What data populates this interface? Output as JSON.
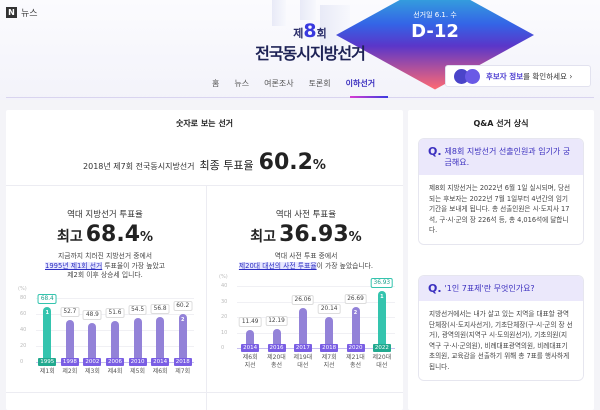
{
  "header": {
    "logo_letter": "N",
    "logo_text": "뉴스",
    "title_prefix": "제",
    "title_num": "8",
    "title_suffix": "회",
    "title_main": "전국동시지방선거",
    "election_day_label": "선거일 6.1. 수",
    "dday": "D-12",
    "candidate_btn": {
      "highlight": "후보자 정보",
      "rest": "를 확인하세요",
      "chevron": "›"
    }
  },
  "nav": {
    "items": [
      {
        "label": "홈"
      },
      {
        "label": "뉴스"
      },
      {
        "label": "여론조사"
      },
      {
        "label": "토론회"
      },
      {
        "label": "이하선거",
        "active": true
      }
    ]
  },
  "numbers_section": {
    "title": "숫자로 보는 선거",
    "final_prefix": "2018년 제7회 전국동시지방선거",
    "final_label": "최종 투표율",
    "final_value": "60.2",
    "final_unit": "%"
  },
  "card_local": {
    "subtitle": "역대 지방선거 투표율",
    "big_label": "최고",
    "big_value": "68.4",
    "unit": "%",
    "desc_line1": "지금까지 치러진 지방선거 중에서",
    "desc_link": "1995년 제1회 선거",
    "desc_line2_rest": " 투표율이 가장 높았고",
    "desc_line3": "제2회 이후 상승세 입니다."
  },
  "card_early": {
    "subtitle": "역대 사전 투표율",
    "big_label": "최고",
    "big_value": "36.93",
    "unit": "%",
    "desc_line1": "역대 사전 투표 중에서",
    "desc_link": "제20대 대선의 사전 투표율",
    "desc_line2_rest": "이 가장 높았습니다."
  },
  "chart_data": [
    {
      "type": "bar",
      "title": "역대 지방선거 투표율",
      "ylabel": "(%)",
      "ylim": [
        0,
        80
      ],
      "yticks": [
        0,
        20,
        40,
        60,
        80
      ],
      "categories": [
        "제1회",
        "제2회",
        "제3회",
        "제4회",
        "제5회",
        "제6회",
        "제7회"
      ],
      "years": [
        "1995",
        "1998",
        "2002",
        "2006",
        "2010",
        "2014",
        "2018"
      ],
      "values": [
        68.4,
        52.7,
        48.9,
        51.6,
        54.5,
        56.8,
        60.2
      ],
      "value_labels": [
        "68.4",
        "52.7",
        "48.9",
        "51.6",
        "54.5",
        "56.8",
        "60.2"
      ],
      "ranks": {
        "0": "1",
        "6": "2"
      },
      "highlight_index": 0,
      "colors": {
        "bar": "#9382d8",
        "highlight": "#34c4ae"
      },
      "grid": true
    },
    {
      "type": "bar",
      "title": "역대 사전 투표율",
      "ylabel": "(%)",
      "ylim": [
        0,
        40
      ],
      "yticks": [
        0,
        10,
        20,
        30,
        40
      ],
      "categories": [
        "제6회 지선",
        "제20대 총선",
        "제19대 대선",
        "제7회 지선",
        "제21대 총선",
        "제20대 대선"
      ],
      "categories_line1": [
        "제6회",
        "제20대",
        "제19대",
        "제7회",
        "제21대",
        "제20대"
      ],
      "categories_line2": [
        "지선",
        "총선",
        "대선",
        "지선",
        "총선",
        "대선"
      ],
      "years": [
        "2014",
        "2016",
        "2017",
        "2018",
        "2020",
        "2022"
      ],
      "values": [
        11.49,
        12.19,
        26.06,
        20.14,
        26.69,
        36.93
      ],
      "value_labels": [
        "11.49",
        "12.19",
        "26.06",
        "20.14",
        "26.69",
        "36.93"
      ],
      "ranks": {
        "4": "2",
        "5": "1"
      },
      "highlight_index": 5,
      "colors": {
        "bar": "#9382d8",
        "highlight": "#34c4ae"
      },
      "grid": true
    }
  ],
  "qa": {
    "title": "Q&A 선거 상식",
    "items": [
      {
        "q_mark": "Q.",
        "question": "제8회 지방선거 선출인원과 임기가 궁금해요.",
        "answer": "제8회 지방선거는 2022년 6월 1일 실시되며, 당선되는 후보자는 2022년 7월 1일부터 4년간의 임기 기간을 보내게 됩니다. 총 선출인원은 시·도지사 17석, 구·시·군의 장 226석 등, 총 4,016석에 달합니다."
      },
      {
        "q_mark": "Q.",
        "question": "'1인 7표제'란 무엇인가요?",
        "answer": "지방선거에서는 내가 살고 있는 지역을 대표할 광역단체장(시·도지사선거), 기초단체장(구·시·군의 장 선거), 광역의원(지역구 시·도의원선거), 기초의원(지역구 구·시·군의원), 비례대표광역의원, 비례대표기초의원, 교육감을 선출하기 위해 총 7표를 행사하게 됩니다."
      }
    ]
  }
}
